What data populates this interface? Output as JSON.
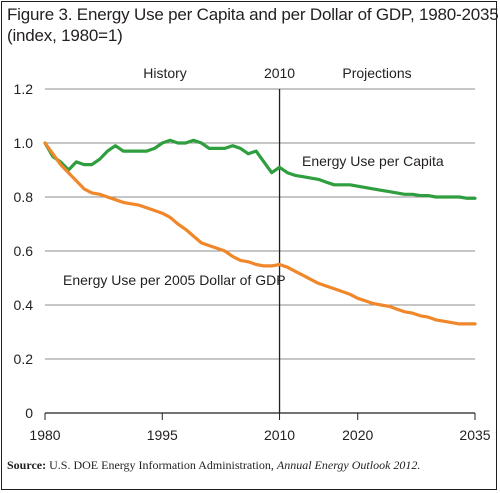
{
  "figure": {
    "title_line1": "Figure 3. Energy Use per Capita and per Dollar of GDP, 1980-2035",
    "title_line2": "(index, 1980=1)"
  },
  "source": {
    "label": "Source:",
    "text": "U.S. DOE Energy Information Administration,",
    "publication": "Annual Energy Outlook 2012."
  },
  "chart_data": {
    "type": "line",
    "title": "Figure 3. Energy Use per Capita and per Dollar of GDP, 1980-2035",
    "subtitle": "(index, 1980=1)",
    "xlim": [
      1980,
      2035
    ],
    "ylim": [
      0,
      1.2
    ],
    "x_ticks": [
      "1980",
      "1995",
      "2010",
      "2020",
      "2035"
    ],
    "x_tick_values": [
      1980,
      1995,
      2010,
      2020,
      2035
    ],
    "y_ticks": [
      "0",
      "0.2",
      "0.4",
      "0.6",
      "0.8",
      "1.0",
      "1.2"
    ],
    "y_tick_values": [
      0,
      0.2,
      0.4,
      0.6,
      0.8,
      1.0,
      1.2
    ],
    "grid": true,
    "divider": {
      "x": 2010,
      "label": "2010"
    },
    "region_labels": {
      "history": "History",
      "projections": "Projections"
    },
    "series": [
      {
        "name": "Energy Use per Capita",
        "color": "#2e9e3e",
        "x": [
          1980,
          1981,
          1982,
          1983,
          1984,
          1985,
          1986,
          1987,
          1988,
          1989,
          1990,
          1991,
          1992,
          1993,
          1994,
          1995,
          1996,
          1997,
          1998,
          1999,
          2000,
          2001,
          2002,
          2003,
          2004,
          2005,
          2006,
          2007,
          2008,
          2009,
          2010,
          2011,
          2012,
          2013,
          2014,
          2015,
          2016,
          2017,
          2018,
          2019,
          2020,
          2021,
          2022,
          2023,
          2024,
          2025,
          2026,
          2027,
          2028,
          2029,
          2030,
          2031,
          2032,
          2033,
          2034,
          2035
        ],
        "values": [
          1.0,
          0.95,
          0.93,
          0.9,
          0.93,
          0.92,
          0.92,
          0.94,
          0.97,
          0.99,
          0.97,
          0.97,
          0.97,
          0.97,
          0.98,
          1.0,
          1.01,
          1.0,
          1.0,
          1.01,
          1.0,
          0.98,
          0.98,
          0.98,
          0.99,
          0.98,
          0.96,
          0.97,
          0.93,
          0.89,
          0.91,
          0.89,
          0.88,
          0.875,
          0.87,
          0.865,
          0.855,
          0.845,
          0.845,
          0.845,
          0.84,
          0.835,
          0.83,
          0.825,
          0.82,
          0.815,
          0.81,
          0.81,
          0.805,
          0.805,
          0.8,
          0.8,
          0.8,
          0.8,
          0.795,
          0.795
        ]
      },
      {
        "name": "Energy Use per 2005 Dollar of GDP",
        "color": "#f0872a",
        "x": [
          1980,
          1981,
          1982,
          1983,
          1984,
          1985,
          1986,
          1987,
          1988,
          1989,
          1990,
          1991,
          1992,
          1993,
          1994,
          1995,
          1996,
          1997,
          1998,
          1999,
          2000,
          2001,
          2002,
          2003,
          2004,
          2005,
          2006,
          2007,
          2008,
          2009,
          2010,
          2011,
          2012,
          2013,
          2014,
          2015,
          2016,
          2017,
          2018,
          2019,
          2020,
          2021,
          2022,
          2023,
          2024,
          2025,
          2026,
          2027,
          2028,
          2029,
          2030,
          2031,
          2032,
          2033,
          2034,
          2035
        ],
        "values": [
          1.0,
          0.96,
          0.92,
          0.89,
          0.86,
          0.83,
          0.815,
          0.81,
          0.8,
          0.79,
          0.78,
          0.775,
          0.77,
          0.76,
          0.75,
          0.74,
          0.725,
          0.7,
          0.68,
          0.655,
          0.63,
          0.62,
          0.61,
          0.6,
          0.58,
          0.565,
          0.56,
          0.55,
          0.545,
          0.545,
          0.55,
          0.54,
          0.525,
          0.51,
          0.495,
          0.48,
          0.47,
          0.46,
          0.45,
          0.44,
          0.425,
          0.415,
          0.405,
          0.4,
          0.395,
          0.385,
          0.375,
          0.37,
          0.36,
          0.355,
          0.345,
          0.34,
          0.335,
          0.33,
          0.33,
          0.33
        ]
      }
    ]
  }
}
